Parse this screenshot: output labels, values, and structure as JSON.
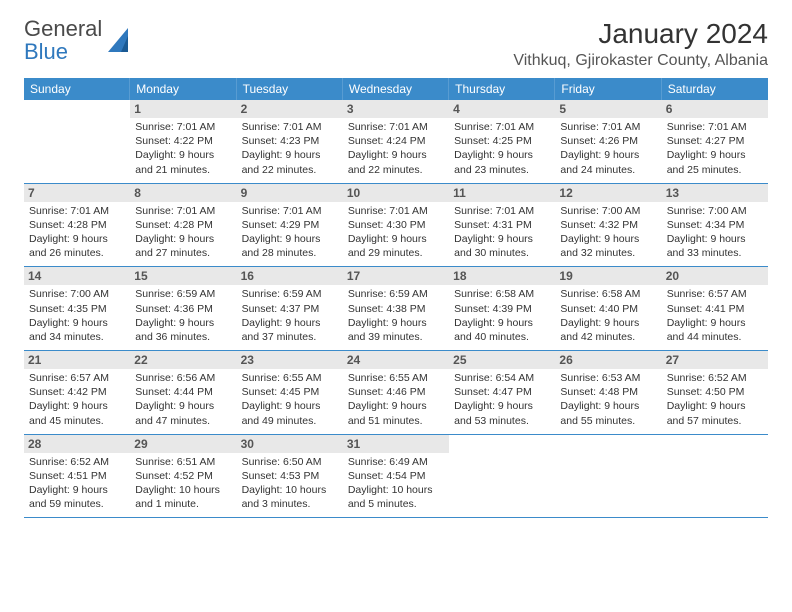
{
  "logo": {
    "text1": "General",
    "text2": "Blue"
  },
  "title": "January 2024",
  "location": "Vithkuq, Gjirokaster County, Albania",
  "weekdays": [
    "Sunday",
    "Monday",
    "Tuesday",
    "Wednesday",
    "Thursday",
    "Friday",
    "Saturday"
  ],
  "colors": {
    "header_bg": "#3b8bca",
    "daynum_bg": "#e8e8e8",
    "logo_blue": "#2f78bd"
  },
  "typography": {
    "title_fontsize": 28,
    "location_fontsize": 16,
    "weekday_fontsize": 12,
    "daynum_fontsize": 12,
    "body_fontsize": 10.5
  },
  "weeks": [
    [
      null,
      {
        "n": "1",
        "sr": "7:01 AM",
        "ss": "4:22 PM",
        "dl": "9 hours and 21 minutes."
      },
      {
        "n": "2",
        "sr": "7:01 AM",
        "ss": "4:23 PM",
        "dl": "9 hours and 22 minutes."
      },
      {
        "n": "3",
        "sr": "7:01 AM",
        "ss": "4:24 PM",
        "dl": "9 hours and 22 minutes."
      },
      {
        "n": "4",
        "sr": "7:01 AM",
        "ss": "4:25 PM",
        "dl": "9 hours and 23 minutes."
      },
      {
        "n": "5",
        "sr": "7:01 AM",
        "ss": "4:26 PM",
        "dl": "9 hours and 24 minutes."
      },
      {
        "n": "6",
        "sr": "7:01 AM",
        "ss": "4:27 PM",
        "dl": "9 hours and 25 minutes."
      }
    ],
    [
      {
        "n": "7",
        "sr": "7:01 AM",
        "ss": "4:28 PM",
        "dl": "9 hours and 26 minutes."
      },
      {
        "n": "8",
        "sr": "7:01 AM",
        "ss": "4:28 PM",
        "dl": "9 hours and 27 minutes."
      },
      {
        "n": "9",
        "sr": "7:01 AM",
        "ss": "4:29 PM",
        "dl": "9 hours and 28 minutes."
      },
      {
        "n": "10",
        "sr": "7:01 AM",
        "ss": "4:30 PM",
        "dl": "9 hours and 29 minutes."
      },
      {
        "n": "11",
        "sr": "7:01 AM",
        "ss": "4:31 PM",
        "dl": "9 hours and 30 minutes."
      },
      {
        "n": "12",
        "sr": "7:00 AM",
        "ss": "4:32 PM",
        "dl": "9 hours and 32 minutes."
      },
      {
        "n": "13",
        "sr": "7:00 AM",
        "ss": "4:34 PM",
        "dl": "9 hours and 33 minutes."
      }
    ],
    [
      {
        "n": "14",
        "sr": "7:00 AM",
        "ss": "4:35 PM",
        "dl": "9 hours and 34 minutes."
      },
      {
        "n": "15",
        "sr": "6:59 AM",
        "ss": "4:36 PM",
        "dl": "9 hours and 36 minutes."
      },
      {
        "n": "16",
        "sr": "6:59 AM",
        "ss": "4:37 PM",
        "dl": "9 hours and 37 minutes."
      },
      {
        "n": "17",
        "sr": "6:59 AM",
        "ss": "4:38 PM",
        "dl": "9 hours and 39 minutes."
      },
      {
        "n": "18",
        "sr": "6:58 AM",
        "ss": "4:39 PM",
        "dl": "9 hours and 40 minutes."
      },
      {
        "n": "19",
        "sr": "6:58 AM",
        "ss": "4:40 PM",
        "dl": "9 hours and 42 minutes."
      },
      {
        "n": "20",
        "sr": "6:57 AM",
        "ss": "4:41 PM",
        "dl": "9 hours and 44 minutes."
      }
    ],
    [
      {
        "n": "21",
        "sr": "6:57 AM",
        "ss": "4:42 PM",
        "dl": "9 hours and 45 minutes."
      },
      {
        "n": "22",
        "sr": "6:56 AM",
        "ss": "4:44 PM",
        "dl": "9 hours and 47 minutes."
      },
      {
        "n": "23",
        "sr": "6:55 AM",
        "ss": "4:45 PM",
        "dl": "9 hours and 49 minutes."
      },
      {
        "n": "24",
        "sr": "6:55 AM",
        "ss": "4:46 PM",
        "dl": "9 hours and 51 minutes."
      },
      {
        "n": "25",
        "sr": "6:54 AM",
        "ss": "4:47 PM",
        "dl": "9 hours and 53 minutes."
      },
      {
        "n": "26",
        "sr": "6:53 AM",
        "ss": "4:48 PM",
        "dl": "9 hours and 55 minutes."
      },
      {
        "n": "27",
        "sr": "6:52 AM",
        "ss": "4:50 PM",
        "dl": "9 hours and 57 minutes."
      }
    ],
    [
      {
        "n": "28",
        "sr": "6:52 AM",
        "ss": "4:51 PM",
        "dl": "9 hours and 59 minutes."
      },
      {
        "n": "29",
        "sr": "6:51 AM",
        "ss": "4:52 PM",
        "dl": "10 hours and 1 minute."
      },
      {
        "n": "30",
        "sr": "6:50 AM",
        "ss": "4:53 PM",
        "dl": "10 hours and 3 minutes."
      },
      {
        "n": "31",
        "sr": "6:49 AM",
        "ss": "4:54 PM",
        "dl": "10 hours and 5 minutes."
      },
      null,
      null,
      null
    ]
  ]
}
